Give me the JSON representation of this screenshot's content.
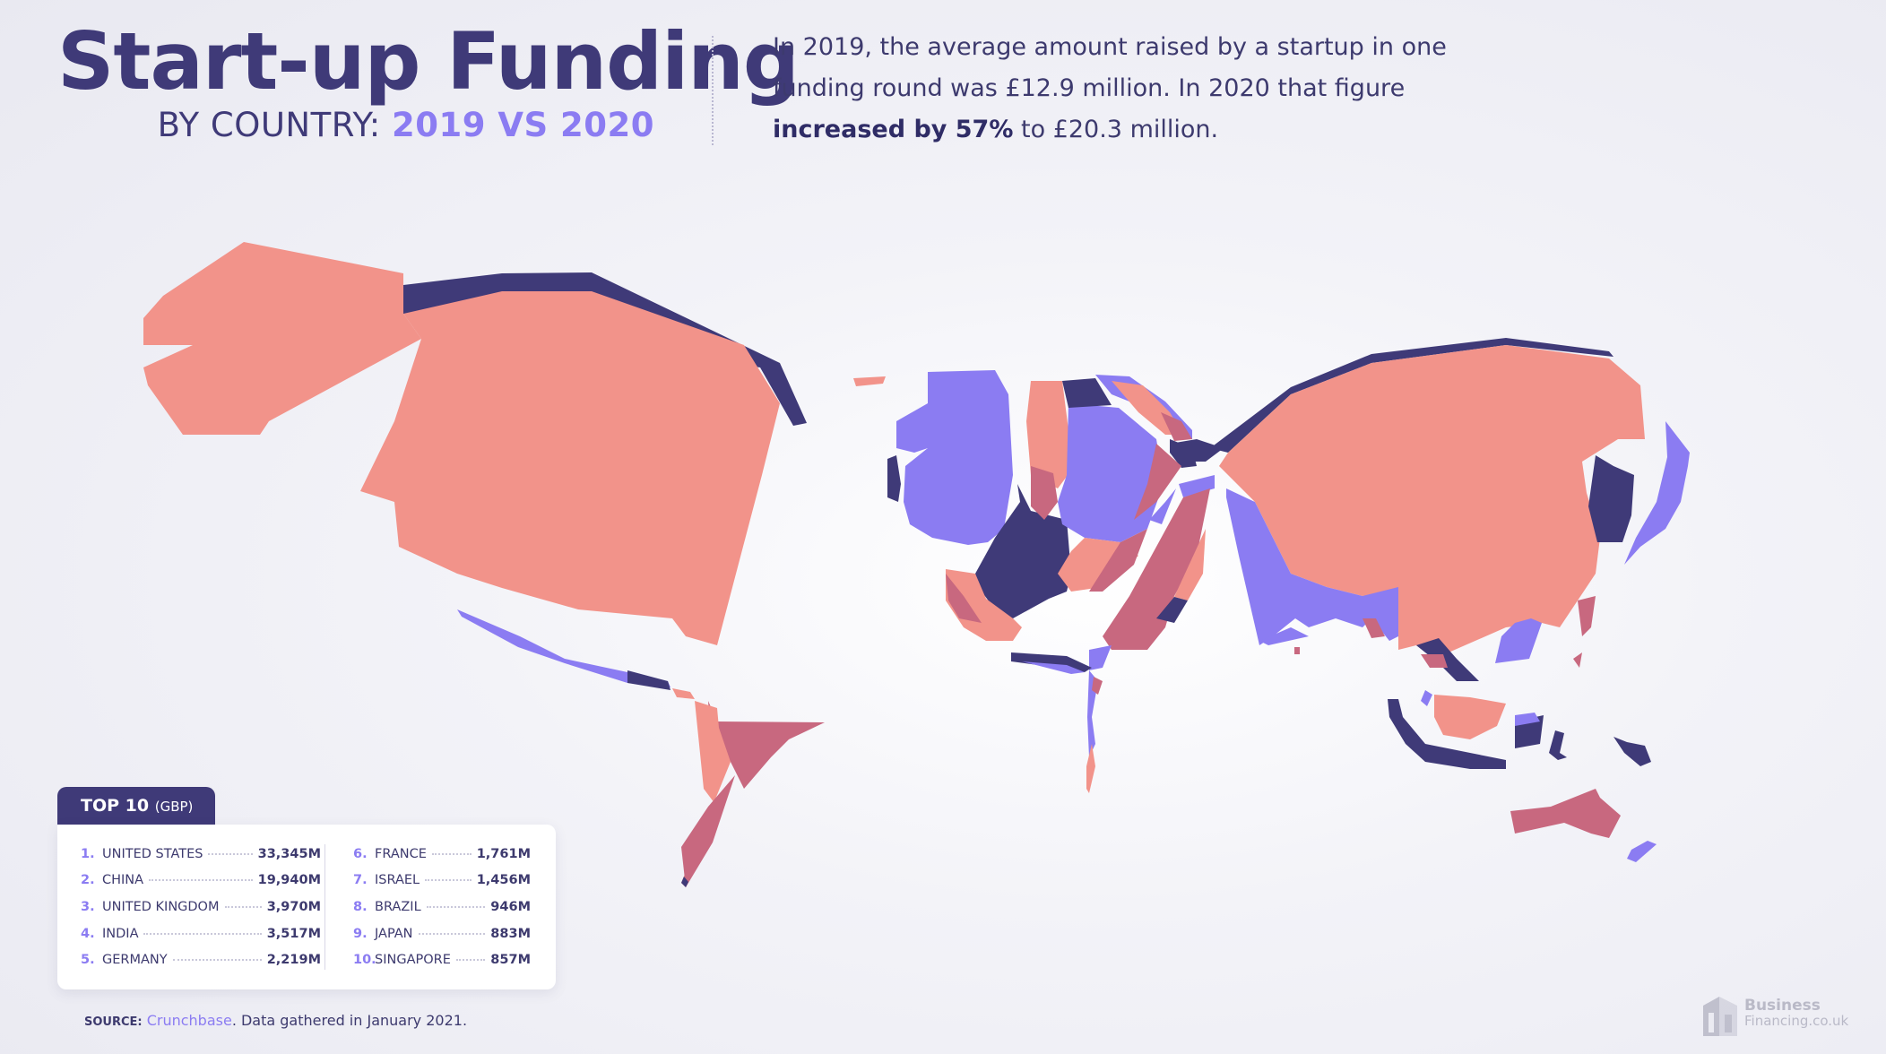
{
  "header": {
    "title": "Start-up Funding",
    "subtitle_prefix": "BY COUNTRY:",
    "subtitle_highlight": "2019 VS 2020",
    "intro_text_1": "In 2019, the average amount raised by a startup in one funding round was £12.9 million. In 2020 that figure",
    "intro_bold": "increased by 57%",
    "intro_text_2": "to £20.3 million."
  },
  "top10": {
    "tab_label": "TOP 10",
    "tab_unit": "(GBP)",
    "rows": [
      {
        "rank": "1.",
        "country": "UNITED STATES",
        "value": "33,345M"
      },
      {
        "rank": "2.",
        "country": "CHINA",
        "value": "19,940M"
      },
      {
        "rank": "3.",
        "country": "UNITED KINGDOM",
        "value": "3,970M"
      },
      {
        "rank": "4.",
        "country": "INDIA",
        "value": "3,517M"
      },
      {
        "rank": "5.",
        "country": "GERMANY",
        "value": "2,219M"
      },
      {
        "rank": "6.",
        "country": "FRANCE",
        "value": "1,761M"
      },
      {
        "rank": "7.",
        "country": "ISRAEL",
        "value": "1,456M"
      },
      {
        "rank": "8.",
        "country": "BRAZIL",
        "value": "946M"
      },
      {
        "rank": "9.",
        "country": "JAPAN",
        "value": "883M"
      },
      {
        "rank": "10.",
        "country": "SINGAPORE",
        "value": "857M"
      }
    ]
  },
  "source": {
    "label": "SOURCE:",
    "link": "Crunchbase",
    "text": ". Data gathered in January 2021."
  },
  "logo": {
    "line1": "Business",
    "line2": "Financing.co.uk"
  },
  "colors": {
    "salmon": "#f2938a",
    "rose": "#c8687f",
    "navy": "#3f3a78",
    "lavender": "#8b7cf2"
  }
}
